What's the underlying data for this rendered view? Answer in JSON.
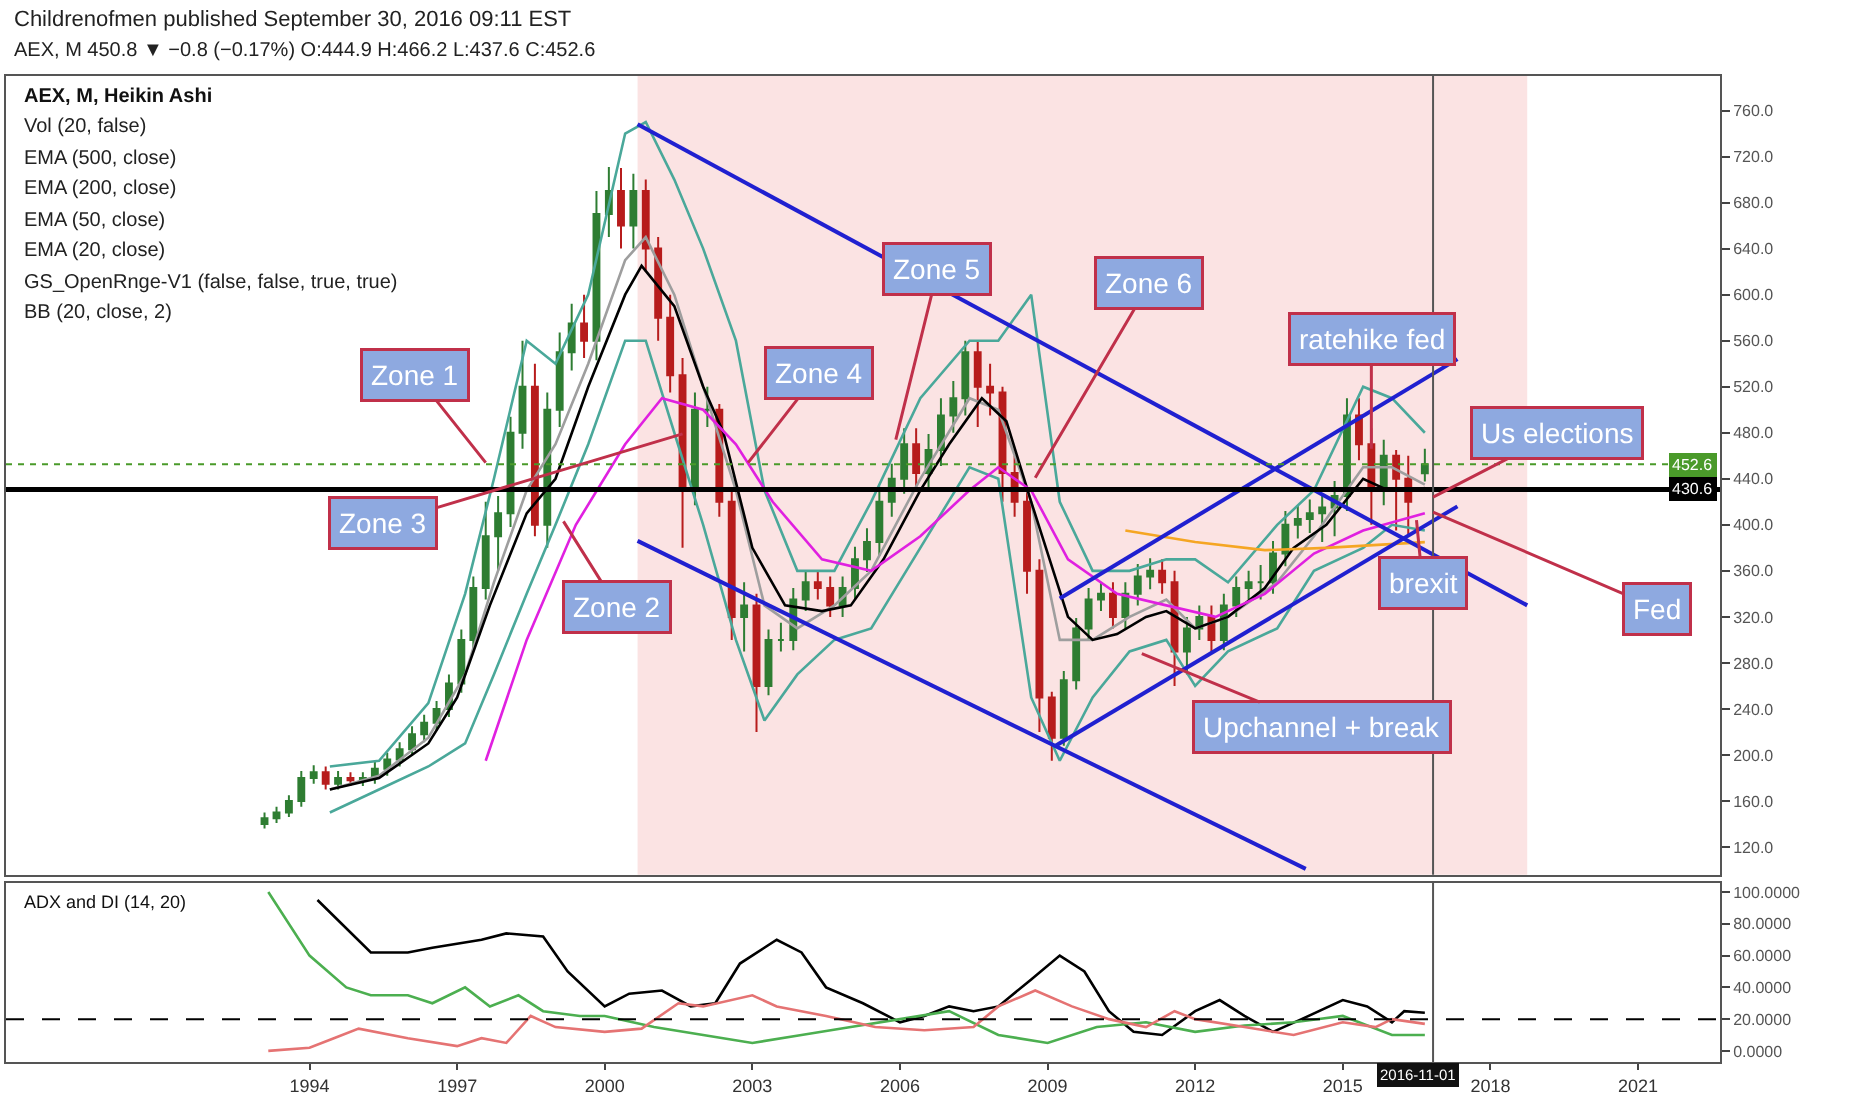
{
  "chart_data": [
    {
      "type": "candlestick",
      "title": "AEX, M, Heikin Ashi",
      "annotations": [
        "Childrenofmen published September 30, 2016 09:11 EST",
        "AEX, M 450.8 ▼ −0.8 (−0.17%) O:444.9 H:466.2 L:437.6 C:452.6",
        "Vol (20, false)",
        "EMA (500, close)",
        "EMA (200, close)",
        "EMA (50, close)",
        "EMA (20, close)",
        "GS_OpenRnge-V1 (false, false, true, true)",
        "BB (20, close, 2)",
        {
          "text": "Zone 1",
          "x": "1997-08",
          "y": 454
        },
        {
          "text": "Zone 2",
          "x": "1999-03",
          "y": 403
        },
        {
          "text": "Zone 3",
          "x": "2001-08",
          "y": 479
        },
        {
          "text": "Zone 4",
          "x": "2002-12",
          "y": 454
        },
        {
          "text": "Zone 5",
          "x": "2005-12",
          "y": 474
        },
        {
          "text": "Zone 6",
          "x": "2008-10",
          "y": 441
        },
        {
          "text": "Upchannel + break",
          "x": "2010-12",
          "y": 288
        },
        {
          "text": "ratehike fed",
          "x": "2015-08",
          "y": 466
        },
        {
          "text": "Us elections",
          "x": "2016-11-01",
          "y": 424
        },
        {
          "text": "Fed",
          "x": "2016-11",
          "y": 411
        },
        {
          "text": "brexit",
          "x": "2016-07",
          "y": 404
        }
      ],
      "x": [
        "1993-02",
        "1993-05",
        "1993-08",
        "1993-11",
        "1994-02",
        "1994-05",
        "1994-08",
        "1994-11",
        "1995-02",
        "1995-05",
        "1995-08",
        "1995-11",
        "1996-02",
        "1996-05",
        "1996-08",
        "1996-11",
        "1997-02",
        "1997-05",
        "1997-08",
        "1997-11",
        "1998-02",
        "1998-05",
        "1998-08",
        "1998-11",
        "1999-02",
        "1999-05",
        "1999-08",
        "1999-11",
        "2000-02",
        "2000-05",
        "2000-08",
        "2000-11",
        "2001-02",
        "2001-05",
        "2001-08",
        "2001-11",
        "2002-02",
        "2002-05",
        "2002-08",
        "2002-11",
        "2003-02",
        "2003-05",
        "2003-08",
        "2003-11",
        "2004-02",
        "2004-05",
        "2004-08",
        "2004-11",
        "2005-02",
        "2005-05",
        "2005-08",
        "2005-11",
        "2006-02",
        "2006-05",
        "2006-08",
        "2006-11",
        "2007-02",
        "2007-05",
        "2007-08",
        "2007-11",
        "2008-02",
        "2008-05",
        "2008-08",
        "2008-11",
        "2009-02",
        "2009-05",
        "2009-08",
        "2009-11",
        "2010-02",
        "2010-05",
        "2010-08",
        "2010-11",
        "2011-02",
        "2011-05",
        "2011-08",
        "2011-11",
        "2012-02",
        "2012-05",
        "2012-08",
        "2012-11",
        "2013-02",
        "2013-05",
        "2013-08",
        "2013-11",
        "2014-02",
        "2014-05",
        "2014-08",
        "2014-11",
        "2015-02",
        "2015-05",
        "2015-08",
        "2015-11",
        "2016-02",
        "2016-05",
        "2016-09"
      ],
      "ohlc": [
        [
          140,
          150,
          136,
          145
        ],
        [
          145,
          155,
          141,
          150
        ],
        [
          150,
          165,
          146,
          160
        ],
        [
          160,
          186,
          155,
          180
        ],
        [
          180,
          191,
          175,
          185
        ],
        [
          185,
          190,
          170,
          175
        ],
        [
          175,
          186,
          170,
          180
        ],
        [
          180,
          185,
          173,
          178
        ],
        [
          178,
          185,
          173,
          180
        ],
        [
          180,
          194,
          175,
          188
        ],
        [
          188,
          202,
          182,
          196
        ],
        [
          196,
          211,
          190,
          205
        ],
        [
          205,
          225,
          199,
          218
        ],
        [
          218,
          235,
          211,
          228
        ],
        [
          228,
          247,
          221,
          240
        ],
        [
          240,
          270,
          233,
          262
        ],
        [
          262,
          309,
          254,
          300
        ],
        [
          300,
          355,
          291,
          345
        ],
        [
          345,
          420,
          335,
          390
        ],
        [
          390,
          425,
          360,
          410
        ],
        [
          410,
          494,
          398,
          480
        ],
        [
          480,
          560,
          466,
          520
        ],
        [
          520,
          540,
          390,
          400
        ],
        [
          400,
          515,
          380,
          500
        ],
        [
          500,
          567,
          485,
          550
        ],
        [
          550,
          592,
          534,
          575
        ],
        [
          575,
          600,
          545,
          560
        ],
        [
          560,
          690,
          543,
          670
        ],
        [
          670,
          711,
          650,
          690
        ],
        [
          690,
          710,
          640,
          660
        ],
        [
          660,
          705,
          640,
          690
        ],
        [
          690,
          700,
          620,
          640
        ],
        [
          640,
          650,
          560,
          580
        ],
        [
          580,
          600,
          515,
          530
        ],
        [
          530,
          545,
          380,
          430
        ],
        [
          430,
          515,
          417,
          500
        ],
        [
          500,
          520,
          485,
          500
        ],
        [
          500,
          505,
          407,
          420
        ],
        [
          420,
          430,
          300,
          320
        ],
        [
          320,
          350,
          290,
          330
        ],
        [
          330,
          340,
          220,
          260
        ],
        [
          260,
          309,
          252,
          300
        ],
        [
          300,
          315,
          290,
          300
        ],
        [
          300,
          345,
          291,
          335
        ],
        [
          335,
          360,
          325,
          350
        ],
        [
          350,
          360,
          335,
          345
        ],
        [
          345,
          355,
          320,
          330
        ],
        [
          330,
          355,
          320,
          345
        ],
        [
          345,
          381,
          335,
          370
        ],
        [
          370,
          397,
          359,
          385
        ],
        [
          385,
          433,
          373,
          420
        ],
        [
          420,
          453,
          407,
          440
        ],
        [
          440,
          484,
          427,
          470
        ],
        [
          470,
          484,
          430,
          445
        ],
        [
          445,
          479,
          432,
          465
        ],
        [
          465,
          510,
          451,
          495
        ],
        [
          495,
          525,
          480,
          510
        ],
        [
          510,
          560,
          495,
          550
        ],
        [
          550,
          560,
          485,
          520
        ],
        [
          520,
          540,
          495,
          515
        ],
        [
          515,
          520,
          420,
          445
        ],
        [
          445,
          460,
          407,
          420
        ],
        [
          420,
          432,
          340,
          360
        ],
        [
          360,
          370,
          220,
          250
        ],
        [
          250,
          255,
          195,
          215
        ],
        [
          215,
          273,
          208,
          265
        ],
        [
          265,
          319,
          257,
          310
        ],
        [
          310,
          345,
          300,
          335
        ],
        [
          335,
          350,
          325,
          340
        ],
        [
          340,
          350,
          310,
          320
        ],
        [
          320,
          350,
          310,
          340
        ],
        [
          340,
          366,
          330,
          355
        ],
        [
          355,
          371,
          344,
          360
        ],
        [
          360,
          370,
          340,
          350
        ],
        [
          350,
          360,
          260,
          290
        ],
        [
          290,
          320,
          270,
          310
        ],
        [
          310,
          330,
          300,
          320
        ],
        [
          320,
          330,
          290,
          300
        ],
        [
          300,
          340,
          291,
          330
        ],
        [
          330,
          355,
          320,
          345
        ],
        [
          345,
          360,
          335,
          350
        ],
        [
          350,
          365,
          335,
          350
        ],
        [
          350,
          386,
          340,
          375
        ],
        [
          375,
          412,
          364,
          400
        ],
        [
          400,
          417,
          388,
          405
        ],
        [
          405,
          422,
          393,
          410
        ],
        [
          410,
          427,
          385,
          415
        ],
        [
          415,
          438,
          390,
          425
        ],
        [
          425,
          510,
          412,
          495
        ],
        [
          495,
          510,
          456,
          470
        ],
        [
          470,
          484,
          400,
          430
        ],
        [
          430,
          474,
          417,
          460
        ],
        [
          460,
          465,
          395,
          440
        ],
        [
          440,
          460,
          390,
          420
        ],
        [
          444.9,
          466.2,
          437.6,
          452.6
        ]
      ],
      "series": [
        {
          "type": "line",
          "color": "#9e9e9e",
          "x": [
            "1994-06",
            "1995-06",
            "1996-06",
            "1997-03",
            "1997-10",
            "1998-06",
            "1999-01",
            "1999-09",
            "2000-06",
            "2000-11",
            "2001-06",
            "2002-01",
            "2002-09",
            "2003-04",
            "2003-12",
            "2004-09",
            "2005-06",
            "2006-06",
            "2007-06",
            "2008-01",
            "2008-09",
            "2009-04",
            "2009-12",
            "2010-09",
            "2011-06",
            "2012-01",
            "2012-09",
            "2013-09",
            "2014-06",
            "2015-06",
            "2016-01",
            "2016-09"
          ],
          "values": [
            170,
            182,
            215,
            270,
            350,
            430,
            470,
            540,
            630,
            650,
            600,
            520,
            430,
            330,
            310,
            330,
            360,
            440,
            510,
            500,
            420,
            300,
            300,
            320,
            335,
            310,
            320,
            350,
            390,
            450,
            450,
            435
          ]
        },
        {
          "type": "line",
          "color": "#4aa89a",
          "x": [
            "1994-06",
            "1995-06",
            "1996-06",
            "1997-03",
            "1997-10",
            "1998-06",
            "1999-01",
            "1999-09",
            "2000-06",
            "2000-11",
            "2001-06",
            "2002-01",
            "2002-09",
            "2003-04",
            "2003-12",
            "2004-09",
            "2005-06",
            "2006-06",
            "2007-06",
            "2008-01",
            "2008-09",
            "2009-04",
            "2009-12",
            "2010-09",
            "2011-06",
            "2012-01",
            "2012-09",
            "2013-09",
            "2014-06",
            "2015-06",
            "2016-01",
            "2016-09"
          ],
          "values": [
            190,
            195,
            245,
            340,
            440,
            560,
            540,
            600,
            740,
            750,
            700,
            640,
            560,
            430,
            360,
            360,
            420,
            510,
            560,
            560,
            600,
            420,
            360,
            360,
            370,
            370,
            350,
            400,
            430,
            520,
            510,
            480
          ]
        },
        {
          "type": "line",
          "color": "#4aa89a",
          "x": [
            "1994-06",
            "1995-06",
            "1996-06",
            "1997-03",
            "1997-10",
            "1998-06",
            "1999-01",
            "1999-09",
            "2000-06",
            "2000-11",
            "2001-06",
            "2002-01",
            "2002-09",
            "2003-04",
            "2003-12",
            "2004-09",
            "2005-06",
            "2006-06",
            "2007-06",
            "2008-01",
            "2008-09",
            "2009-04",
            "2009-12",
            "2010-09",
            "2011-06",
            "2012-01",
            "2012-09",
            "2013-09",
            "2014-06",
            "2015-06",
            "2016-01",
            "2016-09"
          ],
          "values": [
            150,
            170,
            190,
            210,
            270,
            340,
            400,
            470,
            560,
            560,
            480,
            400,
            300,
            230,
            270,
            300,
            310,
            380,
            450,
            440,
            250,
            195,
            250,
            290,
            300,
            260,
            290,
            310,
            360,
            380,
            400,
            395
          ]
        },
        {
          "type": "line",
          "color": "#000000",
          "x": [
            "1994-06",
            "1995-06",
            "1996-06",
            "1997-01",
            "1997-09",
            "1998-06",
            "1999-01",
            "1999-09",
            "2000-06",
            "2000-10",
            "2001-06",
            "2002-01",
            "2002-06",
            "2003-01",
            "2003-09",
            "2004-06",
            "2005-01",
            "2005-09",
            "2006-06",
            "2007-01",
            "2007-09",
            "2008-03",
            "2008-09",
            "2009-06",
            "2009-12",
            "2010-06",
            "2011-01",
            "2011-06",
            "2012-01",
            "2012-09",
            "2013-06",
            "2014-01",
            "2014-09",
            "2015-06",
            "2015-12",
            "2016-06",
            "2016-09"
          ],
          "values": [
            170,
            180,
            210,
            250,
            330,
            410,
            440,
            520,
            600,
            625,
            590,
            520,
            480,
            380,
            330,
            325,
            330,
            370,
            430,
            470,
            510,
            490,
            420,
            320,
            300,
            305,
            320,
            325,
            310,
            320,
            345,
            380,
            400,
            440,
            430,
            430,
            432
          ]
        },
        {
          "type": "line",
          "color": "#e020e0",
          "x": [
            "1997-08",
            "1998-06",
            "1999-06",
            "2000-06",
            "2001-03",
            "2002-01",
            "2002-09",
            "2003-06",
            "2004-06",
            "2005-06",
            "2006-06",
            "2007-06",
            "2008-01",
            "2008-09",
            "2009-06",
            "2010-06",
            "2011-06",
            "2012-06",
            "2013-06",
            "2014-06",
            "2015-06",
            "2016-09"
          ],
          "values": [
            195,
            300,
            400,
            470,
            510,
            500,
            470,
            420,
            370,
            360,
            390,
            430,
            450,
            430,
            370,
            340,
            330,
            320,
            340,
            375,
            395,
            410
          ]
        },
        {
          "type": "line",
          "color": "#f5a623",
          "x": [
            "2010-08",
            "2012-01",
            "2013-06",
            "2014-09",
            "2016-09"
          ],
          "values": [
            395,
            385,
            378,
            380,
            385
          ]
        },
        {
          "type": "line",
          "color": "#2020d0",
          "x": [
            "2000-09",
            "2018-10"
          ],
          "values": [
            748,
            330
          ]
        },
        {
          "type": "line",
          "color": "#2020d0",
          "x": [
            "2000-09",
            "2014-04"
          ],
          "values": [
            386,
            101
          ]
        },
        {
          "type": "line",
          "color": "#2020d0",
          "x": [
            "2009-03",
            "2017-05"
          ],
          "values": [
            208,
            416
          ]
        },
        {
          "type": "line",
          "color": "#2020d0",
          "x": [
            "2009-04",
            "2017-05"
          ],
          "values": [
            336,
            544
          ]
        }
      ],
      "ylim": [
        96,
        790
      ],
      "yticks": [
        {
          "value": 120,
          "label": "120.0"
        },
        {
          "value": 160,
          "label": "160.0"
        },
        {
          "value": 200,
          "label": "200.0"
        },
        {
          "value": 240,
          "label": "240.0"
        },
        {
          "value": 280,
          "label": "280.0"
        },
        {
          "value": 320,
          "label": "320.0"
        },
        {
          "value": 360,
          "label": "360.0"
        },
        {
          "value": 400,
          "label": "400.0"
        },
        {
          "value": 440,
          "label": "440.0"
        },
        {
          "value": 480,
          "label": "480.0"
        },
        {
          "value": 520,
          "label": "520.0"
        },
        {
          "value": 560,
          "label": "560.0"
        },
        {
          "value": 600,
          "label": "600.0"
        },
        {
          "value": 640,
          "label": "640.0"
        },
        {
          "value": 680,
          "label": "680.0"
        },
        {
          "value": 720,
          "label": "720.0"
        },
        {
          "value": 760,
          "label": "760.0"
        }
      ],
      "xlim": [
        "1987-11",
        "2022-09"
      ],
      "xticks": [
        "1994",
        "1997",
        "2000",
        "2003",
        "2006",
        "2009",
        "2012",
        "2015",
        "2018",
        "2021"
      ],
      "tick_labels": "y",
      "ref_lines": [
        {
          "axis": "y",
          "value": 430.6,
          "label": "430.6",
          "color": "#000000",
          "line_style": "solid"
        },
        {
          "axis": "y",
          "value": 452.6,
          "label": "452.6",
          "color": "#4a9a2a",
          "line_style": "dotted"
        },
        {
          "axis": "x",
          "value": "2016-11-01",
          "color": "#555555",
          "line_style": "solid"
        }
      ],
      "bands": [
        {
          "axis": "x",
          "from": "2000-09",
          "to": "2018-10",
          "color": "#fbe3e3"
        }
      ],
      "grid": false
    },
    {
      "type": "line",
      "title": "ADX and DI (14, 20)",
      "series": [
        {
          "color": "#000000",
          "x": [
            "1994-03",
            "1995-04",
            "1996-01",
            "1996-07",
            "1997-07",
            "1998-01",
            "1998-10",
            "1999-04",
            "2000-01",
            "2000-07",
            "2001-03",
            "2001-10",
            "2002-04",
            "2002-10",
            "2003-07",
            "2004-01",
            "2004-07",
            "2005-04",
            "2006-01",
            "2006-07",
            "2007-01",
            "2007-07",
            "2008-01",
            "2008-09",
            "2009-04",
            "2009-10",
            "2010-04",
            "2010-10",
            "2011-05",
            "2012-01",
            "2012-07",
            "2013-01",
            "2013-08",
            "2014-03",
            "2015-01",
            "2015-07",
            "2016-01",
            "2016-04",
            "2016-09"
          ],
          "values": [
            95,
            62,
            62,
            65,
            70,
            74,
            72,
            50,
            28,
            36,
            38,
            28,
            30,
            55,
            70,
            62,
            40,
            30,
            18,
            22,
            28,
            25,
            28,
            45,
            60,
            50,
            25,
            12,
            10,
            25,
            32,
            22,
            12,
            20,
            32,
            28,
            18,
            25,
            24
          ]
        },
        {
          "color": "#4caf50",
          "x": [
            "1993-03",
            "1994-01",
            "1994-10",
            "1995-04",
            "1996-01",
            "1996-07",
            "1997-03",
            "1997-09",
            "1998-04",
            "1998-10",
            "1999-07",
            "2000-01",
            "2001-01",
            "2002-01",
            "2003-01",
            "2004-01",
            "2005-01",
            "2006-01",
            "2007-01",
            "2008-01",
            "2009-01",
            "2010-01",
            "2011-01",
            "2012-01",
            "2013-01",
            "2014-01",
            "2015-01",
            "2016-01",
            "2016-09"
          ],
          "values": [
            100,
            60,
            40,
            35,
            35,
            30,
            40,
            28,
            35,
            25,
            22,
            22,
            15,
            10,
            5,
            10,
            15,
            20,
            25,
            10,
            5,
            15,
            18,
            12,
            16,
            18,
            22,
            10,
            10
          ]
        },
        {
          "color": "#e57373",
          "x": [
            "1993-03",
            "1994-01",
            "1994-07",
            "1995-01",
            "1996-01",
            "1997-01",
            "1997-07",
            "1998-01",
            "1998-07",
            "1999-01",
            "2000-01",
            "2000-10",
            "2001-07",
            "2002-01",
            "2003-01",
            "2003-07",
            "2004-07",
            "2005-07",
            "2006-07",
            "2007-07",
            "2008-01",
            "2008-10",
            "2009-07",
            "2010-04",
            "2011-01",
            "2011-08",
            "2012-01",
            "2013-01",
            "2014-01",
            "2015-01",
            "2015-09",
            "2016-01",
            "2016-09"
          ],
          "values": [
            0,
            2,
            8,
            14,
            8,
            3,
            8,
            5,
            22,
            15,
            12,
            14,
            30,
            28,
            35,
            28,
            22,
            15,
            13,
            15,
            28,
            38,
            28,
            20,
            15,
            25,
            20,
            15,
            10,
            18,
            15,
            20,
            17
          ]
        }
      ],
      "ylim": [
        -7,
        106
      ],
      "yticks": [
        {
          "value": 0,
          "label": "0.0000"
        },
        {
          "value": 20,
          "label": "20.0000"
        },
        {
          "value": 40,
          "label": "40.0000"
        },
        {
          "value": 60,
          "label": "60.0000"
        },
        {
          "value": 80,
          "label": "80.0000"
        },
        {
          "value": 100,
          "label": "100.0000"
        }
      ],
      "xlim": [
        "1987-11",
        "2022-09"
      ],
      "xticks": [
        "1994",
        "1997",
        "2000",
        "2003",
        "2006",
        "2009",
        "2012",
        "2015",
        "2018",
        "2021"
      ],
      "ref_lines": [
        {
          "axis": "y",
          "value": 20,
          "color": "#000000",
          "line_style": "dashed"
        },
        {
          "axis": "x",
          "value": "2016-11-01",
          "label": "2016-11-01",
          "color": "#555555",
          "line_style": "solid"
        }
      ],
      "grid": false
    }
  ]
}
